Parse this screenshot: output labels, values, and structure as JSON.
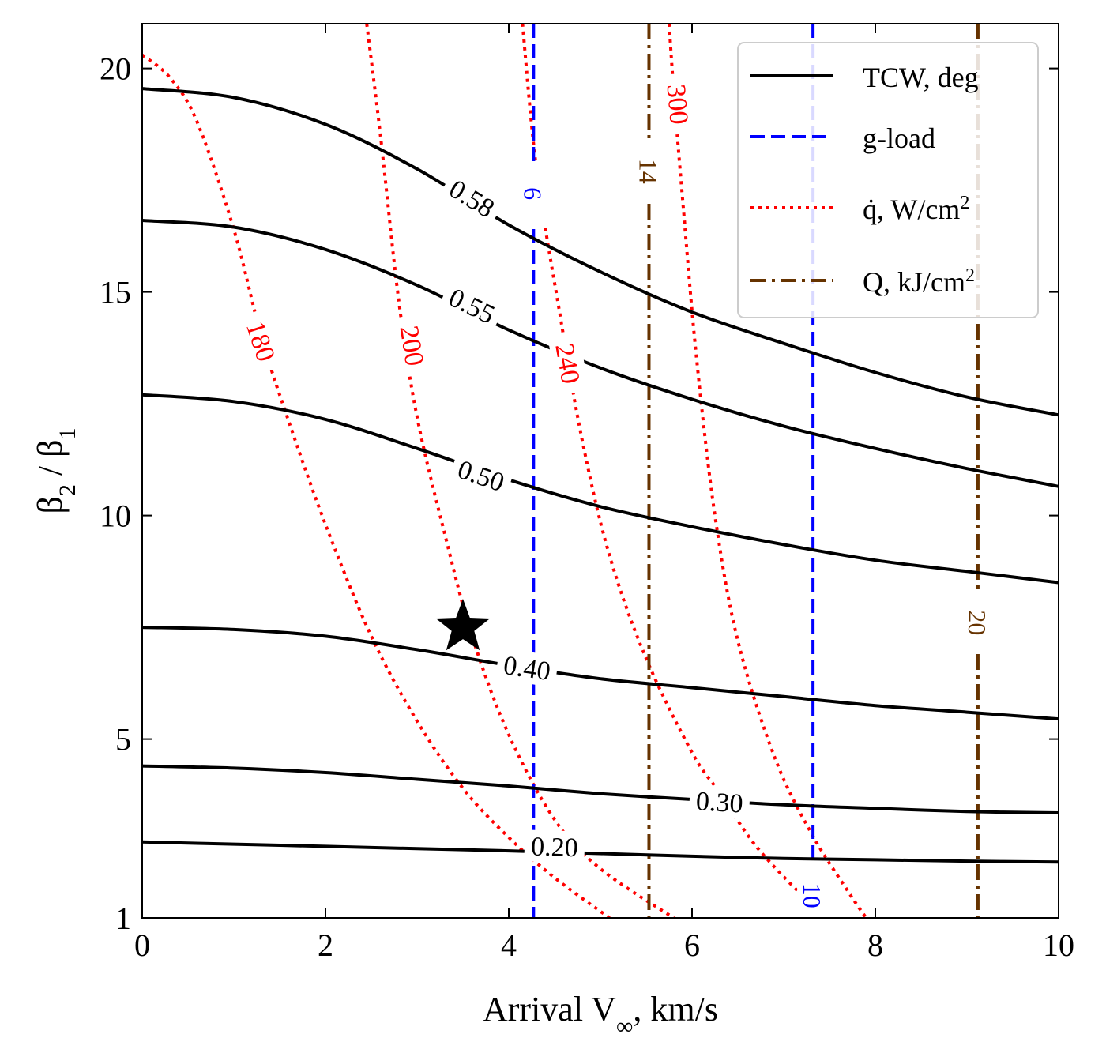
{
  "chart_data": {
    "type": "line",
    "title": "",
    "xlabel": "Arrival V",
    "xlabel_sub": "∞",
    "xlabel_suffix": ", km/s",
    "ylabel_parts": [
      "β",
      "2",
      " / β",
      "1"
    ],
    "xlim": [
      0,
      10
    ],
    "ylim": [
      1,
      21
    ],
    "xticks": [
      0,
      2,
      4,
      6,
      8,
      10
    ],
    "yticks": [
      1,
      5,
      10,
      15,
      20
    ],
    "grid": false,
    "legend": {
      "placement": "top-right",
      "entries": [
        {
          "label": "TCW, deg",
          "color": "#000000",
          "style": "solid"
        },
        {
          "label": "g-load",
          "color": "#0000ff",
          "style": "dashed"
        },
        {
          "label": "q̇, W/cm",
          "sup": "2",
          "color": "#ff0000",
          "style": "dotted"
        },
        {
          "label": "Q, kJ/cm",
          "sup": "2",
          "color": "#663300",
          "style": "dashdot"
        }
      ]
    },
    "tcw_contours": [
      {
        "label": "0.20",
        "label_at": [
          4.5,
          2.6
        ],
        "points": [
          [
            0,
            2.7
          ],
          [
            1,
            2.65
          ],
          [
            2,
            2.6
          ],
          [
            3,
            2.55
          ],
          [
            4,
            2.5
          ],
          [
            5,
            2.44
          ],
          [
            6,
            2.38
          ],
          [
            7,
            2.33
          ],
          [
            8,
            2.3
          ],
          [
            9,
            2.27
          ],
          [
            10,
            2.25
          ]
        ]
      },
      {
        "label": "0.30",
        "label_at": [
          6.3,
          3.6
        ],
        "points": [
          [
            0,
            4.4
          ],
          [
            1,
            4.35
          ],
          [
            2,
            4.25
          ],
          [
            3,
            4.1
          ],
          [
            4,
            3.95
          ],
          [
            5,
            3.78
          ],
          [
            6,
            3.65
          ],
          [
            7,
            3.53
          ],
          [
            8,
            3.45
          ],
          [
            9,
            3.38
          ],
          [
            10,
            3.35
          ]
        ]
      },
      {
        "label": "0.40",
        "label_at": [
          4.2,
          6.6
        ],
        "points": [
          [
            0,
            7.5
          ],
          [
            1,
            7.45
          ],
          [
            2,
            7.3
          ],
          [
            3,
            7.0
          ],
          [
            4,
            6.65
          ],
          [
            5,
            6.35
          ],
          [
            6,
            6.15
          ],
          [
            7,
            5.95
          ],
          [
            8,
            5.75
          ],
          [
            9,
            5.6
          ],
          [
            10,
            5.45
          ]
        ]
      },
      {
        "label": "0.50",
        "label_at": [
          3.7,
          10.9
        ],
        "points": [
          [
            0,
            12.7
          ],
          [
            1,
            12.55
          ],
          [
            2,
            12.15
          ],
          [
            3,
            11.5
          ],
          [
            4,
            10.8
          ],
          [
            5,
            10.2
          ],
          [
            6,
            9.75
          ],
          [
            7,
            9.35
          ],
          [
            8,
            9.0
          ],
          [
            9,
            8.75
          ],
          [
            10,
            8.5
          ]
        ]
      },
      {
        "label": "0.55",
        "label_at": [
          3.6,
          14.7
        ],
        "points": [
          [
            0,
            16.6
          ],
          [
            1,
            16.45
          ],
          [
            2,
            15.95
          ],
          [
            3,
            15.15
          ],
          [
            4,
            14.15
          ],
          [
            5,
            13.3
          ],
          [
            6,
            12.6
          ],
          [
            7,
            12.0
          ],
          [
            8,
            11.5
          ],
          [
            9,
            11.05
          ],
          [
            10,
            10.65
          ]
        ]
      },
      {
        "label": "0.58",
        "label_at": [
          3.6,
          17.1
        ],
        "points": [
          [
            0,
            19.55
          ],
          [
            1,
            19.35
          ],
          [
            2,
            18.75
          ],
          [
            3,
            17.75
          ],
          [
            4,
            16.5
          ],
          [
            5,
            15.45
          ],
          [
            6,
            14.55
          ],
          [
            7,
            13.85
          ],
          [
            8,
            13.2
          ],
          [
            9,
            12.65
          ],
          [
            10,
            12.25
          ]
        ]
      }
    ],
    "gload_contours": [
      {
        "label": "6",
        "x": 4.27
      },
      {
        "label": "10",
        "x": 7.32
      }
    ],
    "q_contours": [
      {
        "label": "14",
        "x": 5.53
      },
      {
        "label": "20",
        "x": 9.12
      }
    ],
    "qdot_contours": [
      {
        "label": "180",
        "label_at": [
          1.3,
          13.9
        ],
        "points": [
          [
            0,
            20.3
          ],
          [
            0.3,
            19.8
          ],
          [
            0.6,
            18.8
          ],
          [
            1.0,
            16.4
          ],
          [
            1.3,
            14.0
          ],
          [
            1.6,
            12.1
          ],
          [
            2.0,
            9.8
          ],
          [
            2.5,
            7.3
          ],
          [
            3.0,
            5.4
          ],
          [
            3.5,
            3.9
          ],
          [
            4.0,
            2.8
          ],
          [
            4.5,
            1.9
          ],
          [
            5.1,
            1.0
          ]
        ]
      },
      {
        "label": "200",
        "label_at": [
          2.95,
          13.8
        ],
        "points": [
          [
            2.45,
            21.0
          ],
          [
            2.6,
            18.5
          ],
          [
            2.8,
            14.8
          ],
          [
            3.0,
            12.2
          ],
          [
            3.3,
            9.6
          ],
          [
            3.6,
            7.3
          ],
          [
            4.0,
            5.1
          ],
          [
            4.5,
            3.2
          ],
          [
            5.0,
            2.1
          ],
          [
            5.8,
            1.0
          ]
        ]
      },
      {
        "label": "240",
        "label_at": [
          4.65,
          13.4
        ],
        "points": [
          [
            4.15,
            21.0
          ],
          [
            4.3,
            17.8
          ],
          [
            4.55,
            14.6
          ],
          [
            4.8,
            11.7
          ],
          [
            5.1,
            9.1
          ],
          [
            5.5,
            6.8
          ],
          [
            6.0,
            4.7
          ],
          [
            6.3,
            3.8
          ],
          [
            6.7,
            2.6
          ],
          [
            7.2,
            1.5
          ]
        ]
      },
      {
        "label": "300",
        "label_at": [
          5.85,
          19.2
        ],
        "points": [
          [
            5.75,
            21.0
          ],
          [
            5.8,
            19.5
          ],
          [
            5.9,
            17.0
          ],
          [
            6.05,
            13.5
          ],
          [
            6.25,
            10.0
          ],
          [
            6.5,
            7.2
          ],
          [
            6.9,
            4.6
          ],
          [
            7.3,
            2.9
          ],
          [
            7.7,
            1.6
          ],
          [
            7.9,
            1.0
          ]
        ]
      }
    ],
    "marker": {
      "shape": "star",
      "x": 3.5,
      "y": 7.5,
      "color": "#000000"
    },
    "colors": {
      "tcw": "#000000",
      "gload": "#0000ff",
      "qdot": "#ff0000",
      "Q": "#663300"
    }
  }
}
